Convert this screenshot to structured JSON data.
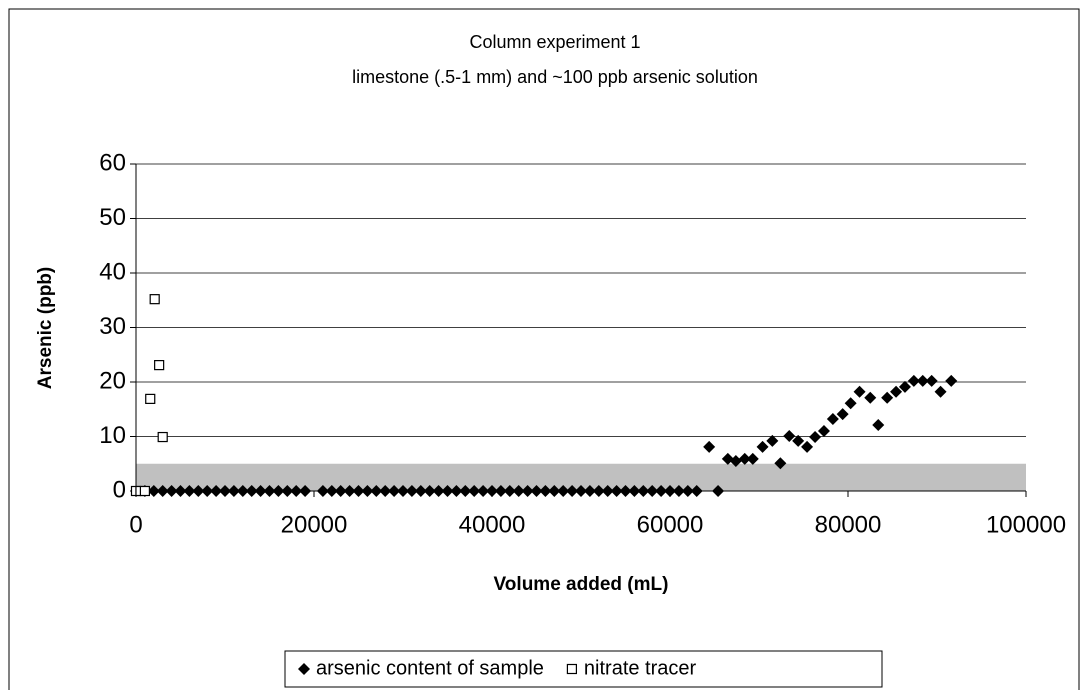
{
  "chart_data": {
    "type": "scatter",
    "title": "Column experiment 1",
    "subtitle": "limestone (.5-1 mm) and ~100 ppb arsenic solution",
    "xlabel": "Volume added (mL)",
    "ylabel": "Arsenic (ppb)",
    "xlim": [
      0,
      100000
    ],
    "xticks": [
      0,
      20000,
      40000,
      60000,
      80000,
      100000
    ],
    "ylim": [
      0,
      60
    ],
    "yticks": [
      0,
      10,
      20,
      30,
      40,
      50,
      60
    ],
    "grid": true,
    "legend": "bottom",
    "band": {
      "ylim": [
        0,
        5
      ],
      "color": "#c0c0c0"
    },
    "series": [
      {
        "name": "arsenic content of sample",
        "color": "#000000",
        "marker": "diamond",
        "x": [
          1000,
          2000,
          3000,
          4000,
          5000,
          6000,
          7000,
          8000,
          9000,
          10000,
          11000,
          12000,
          13000,
          14000,
          15000,
          16000,
          17000,
          18000,
          19000,
          21000,
          22000,
          23000,
          24000,
          25000,
          26000,
          27000,
          28000,
          29000,
          30000,
          31000,
          32000,
          33000,
          34000,
          35000,
          36000,
          37000,
          38000,
          39000,
          40000,
          41000,
          42000,
          43000,
          44000,
          45000,
          46000,
          47000,
          48000,
          49000,
          50000,
          51000,
          52000,
          53000,
          54000,
          55000,
          56000,
          57000,
          58000,
          59000,
          60000,
          61000,
          62000,
          63000,
          64400,
          65400,
          66500,
          67400,
          68400,
          69300,
          70400,
          71500,
          72400,
          73400,
          74400,
          75400,
          76300,
          77300,
          78300,
          79400,
          80300,
          81300,
          82500,
          83400,
          84400,
          85400,
          86400,
          87400,
          88400,
          89400,
          90400,
          91600
        ],
        "values": [
          0,
          0,
          0,
          0,
          0,
          0,
          0,
          0,
          0,
          0,
          0,
          0,
          0,
          0,
          0,
          0,
          0,
          0,
          0,
          0,
          0,
          0,
          0,
          0,
          0,
          0,
          0,
          0,
          0,
          0,
          0,
          0,
          0,
          0,
          0,
          0,
          0,
          0,
          0,
          0,
          0,
          0,
          0,
          0,
          0,
          0,
          0,
          0,
          0,
          0,
          0,
          0,
          0,
          0,
          0,
          0,
          0,
          0,
          0,
          0,
          0,
          0,
          8.1,
          0,
          5.9,
          5.5,
          5.9,
          5.9,
          8.1,
          9.2,
          5.1,
          10.1,
          9.2,
          8.1,
          9.9,
          11,
          13.2,
          14.1,
          16.1,
          18.2,
          17.1,
          12.1,
          17.1,
          18.2,
          19.1,
          20.2,
          20.2,
          20.2,
          18.2,
          20.2
        ]
      },
      {
        "name": "nitrate tracer",
        "color": "#000000",
        "marker": "square",
        "x": [
          0,
          500,
          1000,
          1600,
          2100,
          2600,
          3000
        ],
        "values": [
          0,
          0,
          0,
          16.9,
          35.2,
          23.1,
          9.9
        ]
      }
    ]
  }
}
